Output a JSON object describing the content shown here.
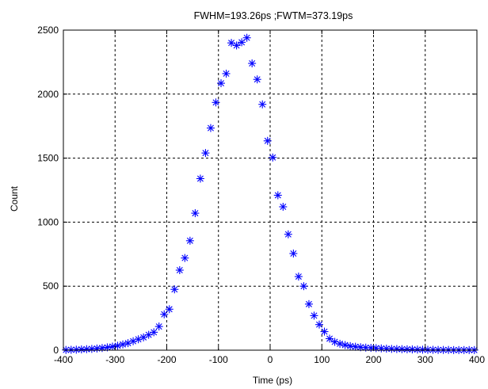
{
  "chart_data": {
    "type": "scatter",
    "title": "FWHM=193.26ps ;FWTM=373.19ps",
    "xlabel": "Time (ps)",
    "ylabel": "Count",
    "xlim": [
      -400,
      400
    ],
    "ylim": [
      0,
      2500
    ],
    "xticks": [
      -400,
      -300,
      -200,
      -100,
      0,
      100,
      200,
      300,
      400
    ],
    "yticks": [
      0,
      500,
      1000,
      1500,
      2000,
      2500
    ],
    "xtick_labels": [
      "-400",
      "-300",
      "-200",
      "-100",
      "0",
      "100",
      "200",
      "300",
      "400"
    ],
    "ytick_labels": [
      "0",
      "500",
      "1000",
      "1500",
      "2000",
      "2500"
    ],
    "grid": true,
    "grid_style": "dashed",
    "marker": "asterisk",
    "marker_color": "#0000ff",
    "series": [
      {
        "x": [
          -395,
          -385,
          -375,
          -365,
          -355,
          -345,
          -335,
          -325,
          -315,
          -305,
          -295,
          -285,
          -275,
          -265,
          -255,
          -245,
          -235,
          -225,
          -215,
          -205,
          -195,
          -185,
          -175,
          -165,
          -155,
          -145,
          -135,
          -125,
          -115,
          -105,
          -95,
          -85,
          -75,
          -65,
          -55,
          -45,
          -35,
          -25,
          -15,
          -5,
          5,
          15,
          25,
          35,
          45,
          55,
          65,
          75,
          85,
          95,
          105,
          115,
          125,
          135,
          145,
          155,
          165,
          175,
          185,
          195,
          205,
          215,
          225,
          235,
          245,
          255,
          265,
          275,
          285,
          295,
          305,
          315,
          325,
          335,
          345,
          355,
          365,
          375,
          385,
          395
        ],
        "y": [
          2,
          3,
          4,
          6,
          8,
          10,
          13,
          17,
          22,
          28,
          35,
          45,
          55,
          70,
          85,
          100,
          120,
          140,
          185,
          280,
          320,
          475,
          625,
          720,
          855,
          1070,
          1340,
          1540,
          1735,
          1935,
          2085,
          2160,
          2400,
          2380,
          2405,
          2440,
          2240,
          2115,
          1920,
          1635,
          1505,
          1210,
          1120,
          905,
          755,
          575,
          500,
          360,
          270,
          200,
          145,
          90,
          65,
          50,
          40,
          32,
          27,
          23,
          20,
          18,
          16,
          14,
          12,
          10,
          9,
          8,
          7,
          6,
          5,
          4,
          3,
          3,
          2,
          2,
          2,
          1,
          1,
          1,
          1,
          1
        ]
      }
    ]
  }
}
